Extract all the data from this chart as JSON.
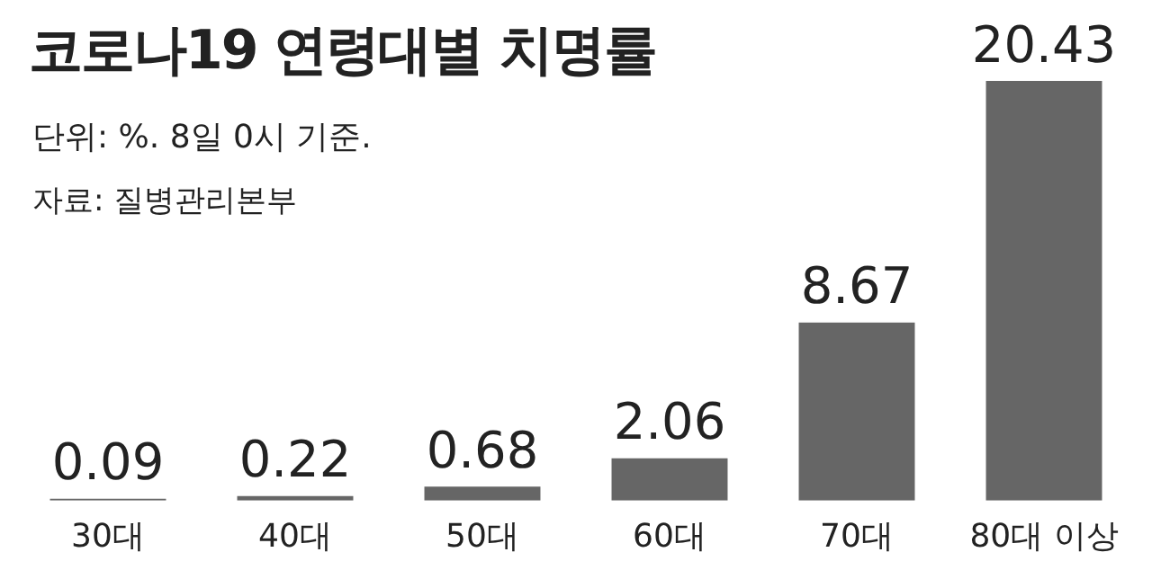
{
  "chart_data": {
    "type": "bar",
    "title": "코로나19 연령대별 치명률",
    "subtitle": "단위: %. 8일 0시 기준.",
    "annotations": [
      "자료: 질병관리본부"
    ],
    "categories": [
      "30대",
      "40대",
      "50대",
      "60대",
      "70대",
      "80대 이상"
    ],
    "values": [
      0.09,
      0.22,
      0.68,
      2.06,
      8.67,
      20.43
    ],
    "color": "#666666",
    "data_labels": true
  }
}
